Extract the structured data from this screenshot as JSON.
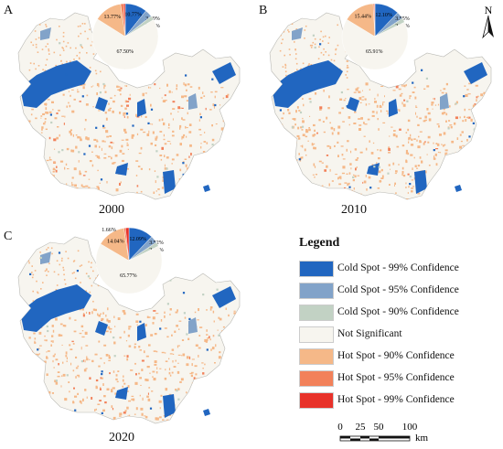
{
  "panels": [
    {
      "label": "A",
      "year": "2000",
      "pie": [
        {
          "cls": "cold99",
          "pct": "10.77%",
          "value": 10.77
        },
        {
          "cls": "cold95",
          "pct": "3.60%",
          "value": 3.6
        },
        {
          "cls": "cold90",
          "pct": "2.06%",
          "value": 2.06
        },
        {
          "cls": "notsig",
          "pct": "67.50%",
          "value": 67.5
        },
        {
          "cls": "hot90",
          "pct": "13.77%",
          "value": 13.77
        },
        {
          "cls": "hot95",
          "pct": "",
          "value": 1.5
        },
        {
          "cls": "hot99",
          "pct": "",
          "value": 0.8
        }
      ]
    },
    {
      "label": "B",
      "year": "2010",
      "pie": [
        {
          "cls": "cold99",
          "pct": "12.10%",
          "value": 12.1
        },
        {
          "cls": "cold95",
          "pct": "3.55%",
          "value": 3.55
        },
        {
          "cls": "cold90",
          "pct": "2.14%",
          "value": 2.14
        },
        {
          "cls": "notsig",
          "pct": "65.91%",
          "value": 65.91
        },
        {
          "cls": "hot90",
          "pct": "15.44%",
          "value": 15.44
        },
        {
          "cls": "hot95",
          "pct": "",
          "value": 0.6
        },
        {
          "cls": "hot99",
          "pct": "",
          "value": 0.26
        }
      ]
    },
    {
      "label": "C",
      "year": "2020",
      "pie": [
        {
          "cls": "cold99",
          "pct": "12.09%",
          "value": 12.09
        },
        {
          "cls": "cold95",
          "pct": "3.52%",
          "value": 3.52
        },
        {
          "cls": "cold90",
          "pct": "2.10%",
          "value": 2.1
        },
        {
          "cls": "notsig",
          "pct": "65.77%",
          "value": 65.77
        },
        {
          "cls": "hot90",
          "pct": "14.04%",
          "value": 14.04
        },
        {
          "cls": "hot95",
          "pct": "",
          "value": 0.82
        },
        {
          "cls": "hot99",
          "pct": "1.66%",
          "value": 1.66
        }
      ]
    }
  ],
  "legend": {
    "title": "Legend",
    "items": [
      {
        "cls": "cold99",
        "label": "Cold Spot - 99% Confidence",
        "color": "#2166c0"
      },
      {
        "cls": "cold95",
        "label": "Cold Spot - 95% Confidence",
        "color": "#82a3c9"
      },
      {
        "cls": "cold90",
        "label": "Cold Spot - 90% Confidence",
        "color": "#c2d2c4"
      },
      {
        "cls": "notsig",
        "label": "Not Significant",
        "color": "#f7f5ef"
      },
      {
        "cls": "hot90",
        "label": "Hot Spot - 90% Confidence",
        "color": "#f5b888"
      },
      {
        "cls": "hot95",
        "label": "Hot Spot - 95% Confidence",
        "color": "#f2815a"
      },
      {
        "cls": "hot99",
        "label": "Hot Spot - 99% Confidence",
        "color": "#e8322a"
      }
    ]
  },
  "north": {
    "label": "N"
  },
  "scale": {
    "ticks": [
      "0",
      "25",
      "50",
      "100"
    ],
    "unit": "km"
  }
}
